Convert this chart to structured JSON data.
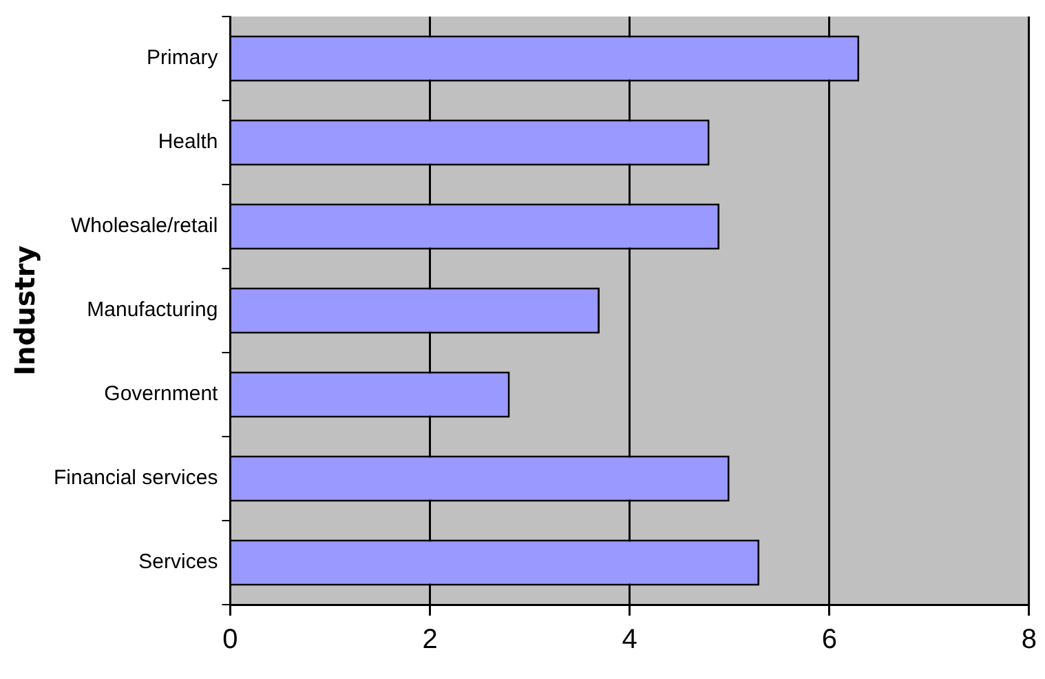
{
  "chart_data": {
    "type": "bar",
    "orientation": "horizontal",
    "ylabel": "Industry",
    "categories": [
      "Primary",
      "Health",
      "Wholesale/retail",
      "Manufacturing",
      "Government",
      "Financial services",
      "Services"
    ],
    "values": [
      6.3,
      4.8,
      4.9,
      3.7,
      2.8,
      5.0,
      5.3
    ],
    "color": "#9999ff",
    "xlim": [
      0,
      8
    ],
    "xticks": [
      0,
      2,
      4,
      6,
      8
    ],
    "grid": "x",
    "legend": false
  }
}
